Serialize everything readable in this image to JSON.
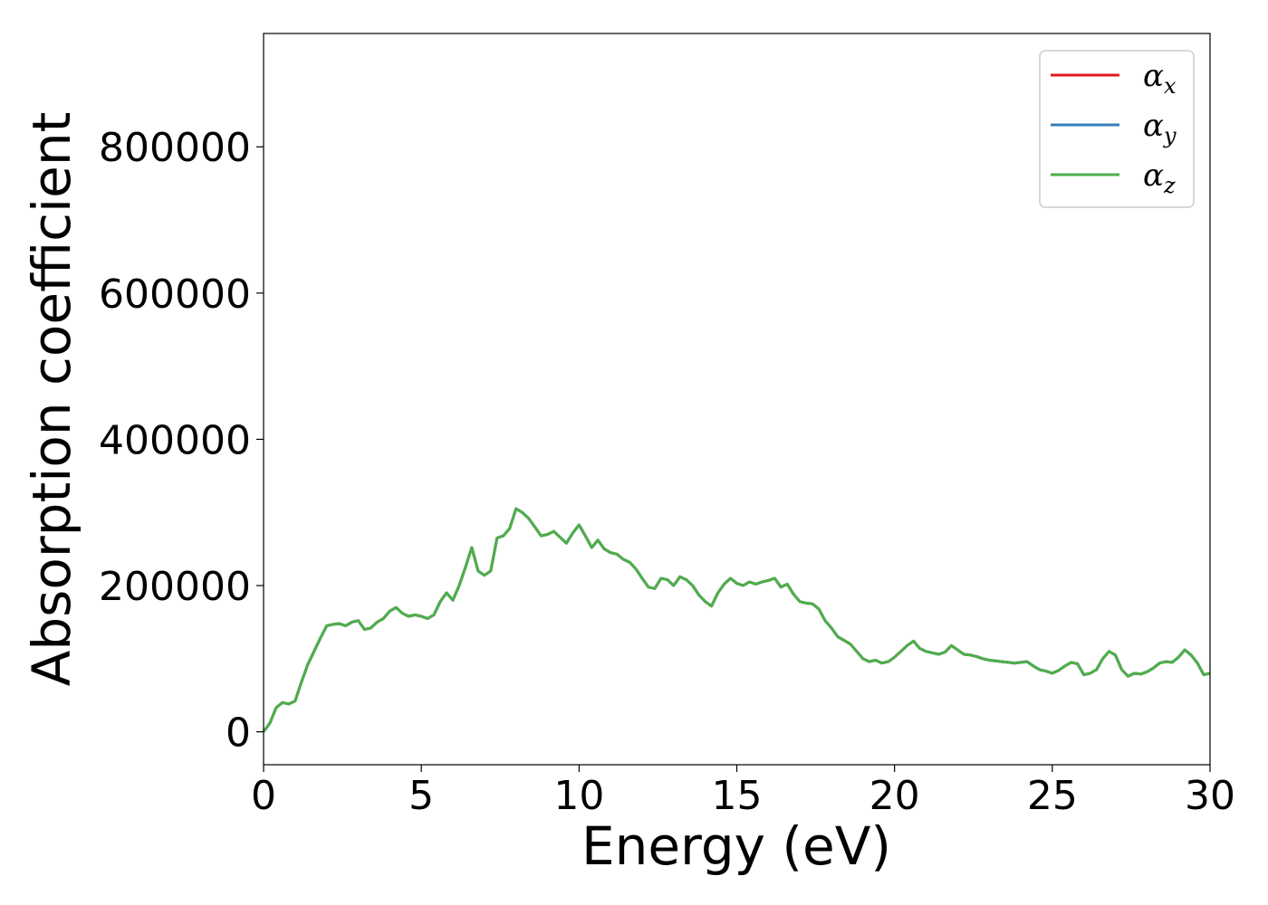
{
  "chart_data": {
    "type": "line",
    "xlabel": "Energy (eV)",
    "ylabel": "Absorption coefficient",
    "xlim": [
      0,
      30
    ],
    "ylim": [
      -45000,
      955000
    ],
    "xticks": [
      0,
      5,
      10,
      15,
      20,
      25,
      30
    ],
    "yticks": [
      0,
      200000,
      400000,
      600000,
      800000
    ],
    "grid": false,
    "legend_position": "top-right",
    "x": [
      0,
      0.2,
      0.4,
      0.6,
      0.8,
      1.0,
      1.2,
      1.4,
      1.6,
      1.8,
      2.0,
      2.2,
      2.4,
      2.6,
      2.8,
      3.0,
      3.2,
      3.4,
      3.6,
      3.8,
      4.0,
      4.2,
      4.4,
      4.6,
      4.8,
      5.0,
      5.2,
      5.4,
      5.6,
      5.8,
      6.0,
      6.2,
      6.4,
      6.6,
      6.8,
      7.0,
      7.2,
      7.4,
      7.6,
      7.8,
      8.0,
      8.2,
      8.4,
      8.6,
      8.8,
      9.0,
      9.2,
      9.4,
      9.6,
      9.8,
      10.0,
      10.2,
      10.4,
      10.6,
      10.8,
      11.0,
      11.2,
      11.4,
      11.6,
      11.8,
      12.0,
      12.2,
      12.4,
      12.6,
      12.8,
      13.0,
      13.2,
      13.4,
      13.6,
      13.8,
      14.0,
      14.2,
      14.4,
      14.6,
      14.8,
      15.0,
      15.2,
      15.4,
      15.6,
      15.8,
      16.0,
      16.2,
      16.4,
      16.6,
      16.8,
      17.0,
      17.2,
      17.4,
      17.6,
      17.8,
      18.0,
      18.2,
      18.4,
      18.6,
      18.8,
      19.0,
      19.2,
      19.4,
      19.6,
      19.8,
      20.0,
      20.2,
      20.4,
      20.6,
      20.8,
      21.0,
      21.2,
      21.4,
      21.6,
      21.8,
      22.0,
      22.2,
      22.4,
      22.6,
      22.8,
      23.0,
      23.2,
      23.4,
      23.6,
      23.8,
      24.0,
      24.2,
      24.4,
      24.6,
      24.8,
      25.0,
      25.2,
      25.4,
      25.6,
      25.8,
      26.0,
      26.2,
      26.4,
      26.6,
      26.8,
      27.0,
      27.2,
      27.4,
      27.6,
      27.8,
      28.0,
      28.2,
      28.4,
      28.6,
      28.8,
      29.0,
      29.2,
      29.4,
      29.6,
      29.8,
      30.0
    ],
    "series": [
      {
        "name": "αx",
        "color": "#e41a1c",
        "values": "same_as_z"
      },
      {
        "name": "αy",
        "color": "#377eb8",
        "values": "same_as_z"
      },
      {
        "name": "αz",
        "color": "#4daf4a",
        "values": [
          0,
          12000,
          33000,
          40000,
          38000,
          42000,
          68000,
          92000,
          110000,
          128000,
          145000,
          147000,
          148000,
          145000,
          150000,
          152000,
          140000,
          142000,
          150000,
          155000,
          165000,
          170000,
          162000,
          158000,
          160000,
          158000,
          155000,
          160000,
          178000,
          190000,
          180000,
          200000,
          225000,
          252000,
          220000,
          214000,
          220000,
          265000,
          268000,
          278000,
          305000,
          300000,
          292000,
          280000,
          268000,
          270000,
          274000,
          266000,
          258000,
          272000,
          283000,
          268000,
          252000,
          262000,
          250000,
          245000,
          243000,
          236000,
          232000,
          223000,
          210000,
          198000,
          196000,
          210000,
          208000,
          200000,
          212000,
          208000,
          200000,
          187000,
          178000,
          172000,
          190000,
          202000,
          210000,
          203000,
          200000,
          205000,
          202000,
          205000,
          207000,
          210000,
          198000,
          202000,
          188000,
          178000,
          176000,
          175000,
          168000,
          152000,
          142000,
          130000,
          125000,
          120000,
          110000,
          100000,
          96000,
          98000,
          94000,
          96000,
          102000,
          110000,
          118000,
          124000,
          114000,
          110000,
          108000,
          106000,
          109000,
          118000,
          112000,
          106000,
          105000,
          103000,
          100000,
          98000,
          97000,
          96000,
          95000,
          94000,
          95000,
          96000,
          90000,
          85000,
          83000,
          80000,
          84000,
          90000,
          95000,
          93000,
          78000,
          80000,
          85000,
          100000,
          110000,
          105000,
          85000,
          76000,
          80000,
          79000,
          82000,
          87000,
          94000,
          96000,
          95000,
          102000,
          112000,
          105000,
          94000,
          78000,
          80000
        ]
      }
    ],
    "legend": [
      "α",
      "α",
      "α"
    ],
    "legend_subscripts": [
      "x",
      "y",
      "z"
    ]
  }
}
